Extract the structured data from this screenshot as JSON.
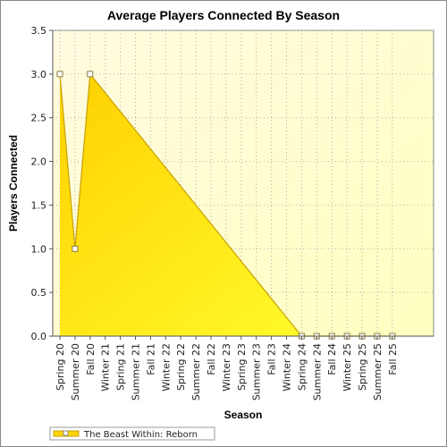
{
  "chart_data": {
    "type": "area",
    "title": "Average Players Connected By Season",
    "xlabel": "Season",
    "ylabel": "Players Connected",
    "ylim": [
      0,
      3.5
    ],
    "yticks": [
      "0.0",
      "0.5",
      "1.0",
      "1.5",
      "2.0",
      "2.5",
      "3.0",
      "3.5"
    ],
    "grid": true,
    "legend_position": "bottom-left",
    "categories": [
      "Spring 20",
      "Summer 20",
      "Fall 20",
      "Winter 21",
      "Spring 21",
      "Summer 21",
      "Fall 21",
      "Winter 22",
      "Spring 22",
      "Summer 22",
      "Fall 22",
      "Winter 23",
      "Spring 23",
      "Summer 23",
      "Fall 23",
      "Winter 24",
      "Spring 24",
      "Summer 24",
      "Fall 24",
      "Winter 25",
      "Spring 25",
      "Summer 25",
      "Fall 25"
    ],
    "marker_points": [
      {
        "x": "Spring 20",
        "y": 3.0
      },
      {
        "x": "Summer 20",
        "y": 1.0
      },
      {
        "x": "Fall 20",
        "y": 3.0
      },
      {
        "x": "Spring 24",
        "y": 0
      },
      {
        "x": "Summer 24",
        "y": 0
      },
      {
        "x": "Fall 24",
        "y": 0
      },
      {
        "x": "Winter 25",
        "y": 0
      },
      {
        "x": "Spring 25",
        "y": 0
      },
      {
        "x": "Summer 25",
        "y": 0
      },
      {
        "x": "Fall 25",
        "y": 0
      }
    ],
    "series": [
      {
        "name": "The Beast Within: Reborn",
        "values": [
          3.0,
          1.0,
          3.0,
          null,
          null,
          null,
          null,
          null,
          null,
          null,
          null,
          null,
          null,
          null,
          null,
          null,
          0,
          0,
          0,
          0,
          0,
          0,
          0
        ]
      }
    ],
    "colors": {
      "fill_dark": "#ffd400",
      "fill_light": "#ffff40",
      "line": "#c8a000",
      "plot_bg_top": "#fffbe6",
      "plot_bg_bottom": "#ffffc8",
      "grid": "#b0b0b0"
    }
  }
}
